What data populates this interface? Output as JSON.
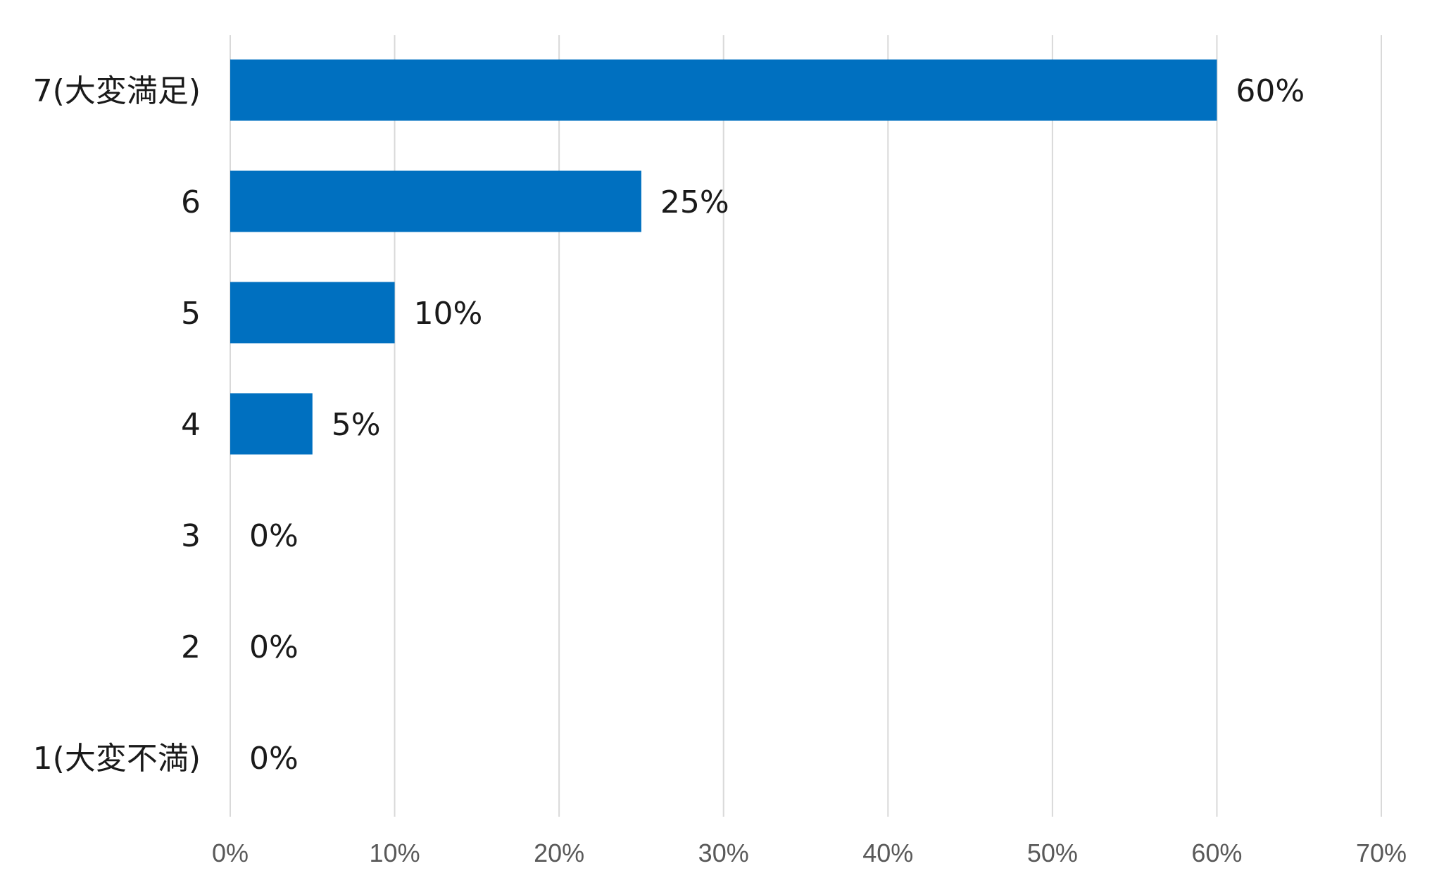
{
  "chart_data": {
    "type": "bar",
    "orientation": "horizontal",
    "categories": [
      "7(大変満足)",
      "6",
      "5",
      "4",
      "3",
      "2",
      "1(大変不満)"
    ],
    "values": [
      60,
      25,
      10,
      5,
      0,
      0,
      0
    ],
    "value_labels": [
      "60%",
      "25%",
      "10%",
      "5%",
      "0%",
      "0%",
      "0%"
    ],
    "xlim": [
      0,
      70
    ],
    "x_ticks": [
      0,
      10,
      20,
      30,
      40,
      50,
      60,
      70
    ],
    "x_tick_labels": [
      "0%",
      "10%",
      "20%",
      "30%",
      "40%",
      "50%",
      "60%",
      "70%"
    ],
    "grid": true,
    "legend": "none",
    "bar_color": "#0070C0",
    "grid_color": "#d9d9d9"
  }
}
